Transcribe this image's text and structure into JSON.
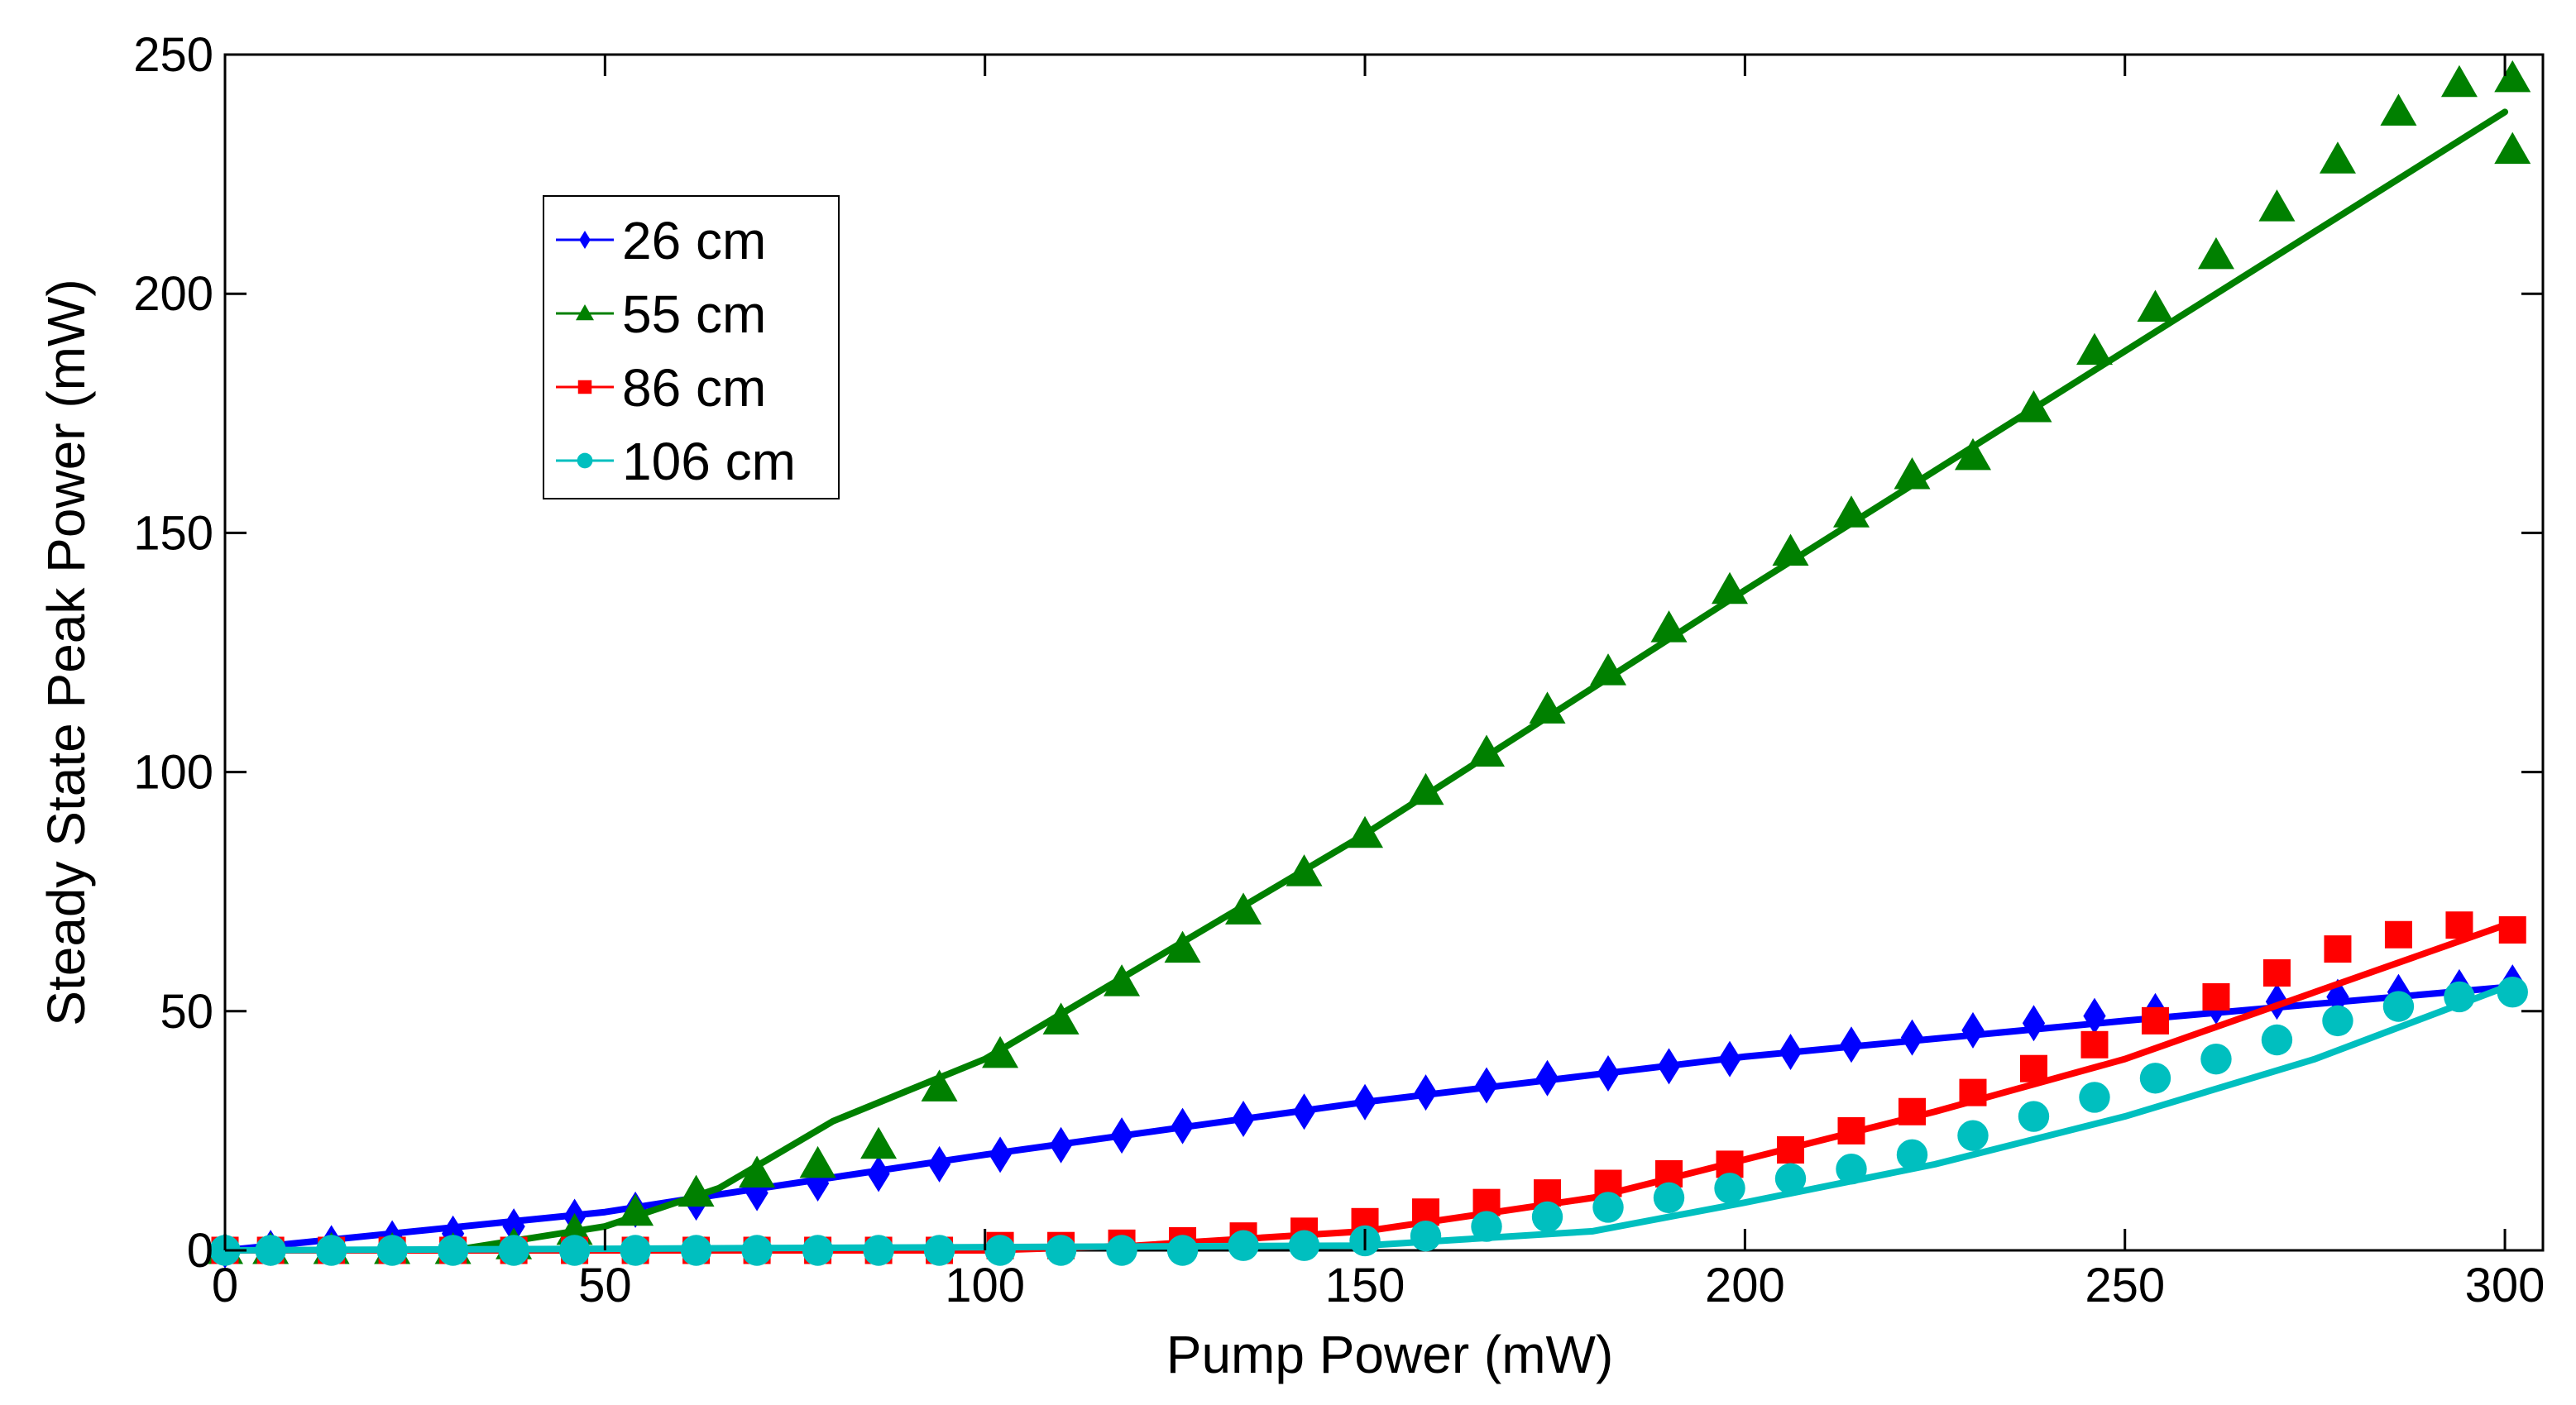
{
  "chart_data": {
    "type": "line",
    "title": "",
    "xlabel": "Pump Power (mW)",
    "ylabel": "Steady State Peak Power (mW)",
    "xlim": [
      0,
      305
    ],
    "ylim": [
      0,
      250
    ],
    "xticks": [
      0,
      50,
      100,
      150,
      200,
      250,
      300
    ],
    "yticks": [
      0,
      50,
      100,
      150,
      200,
      250
    ],
    "legend_position": "upper-left",
    "grid": false,
    "series": [
      {
        "name": "26 cm",
        "color": "#0000ff",
        "marker": "diamond",
        "line_x": [
          0,
          50,
          60,
          100,
          150,
          200,
          250,
          300
        ],
        "line_y": [
          0,
          8,
          10.5,
          20,
          31,
          40.5,
          48,
          55
        ],
        "points_x": [
          0,
          6,
          14,
          22,
          30,
          38,
          46,
          54,
          62,
          70,
          78,
          86,
          94,
          102,
          110,
          118,
          126,
          134,
          142,
          150,
          158,
          166,
          174,
          182,
          190,
          198,
          206,
          214,
          222,
          230,
          238,
          246,
          254,
          262,
          270,
          278,
          286,
          294,
          301
        ],
        "points_y": [
          0,
          0.5,
          1.5,
          2.5,
          3.5,
          5,
          7,
          8.5,
          10,
          12,
          14,
          16,
          18,
          20,
          22,
          24,
          26,
          27.5,
          29,
          31,
          33,
          34.5,
          36,
          37,
          38.5,
          40,
          41.5,
          43,
          44.5,
          46,
          47.5,
          49,
          50,
          51,
          52,
          53,
          54,
          55,
          56
        ]
      },
      {
        "name": "55 cm",
        "color": "#008000",
        "marker": "triangle",
        "line_x": [
          0,
          30,
          50,
          65,
          80,
          100,
          150,
          200,
          250,
          300
        ],
        "line_y": [
          0,
          0,
          5,
          13,
          27,
          40,
          87,
          138,
          188,
          238
        ],
        "points_x": [
          0,
          6,
          14,
          22,
          30,
          38,
          46,
          54,
          62,
          70,
          78,
          86,
          94,
          102,
          110,
          118,
          126,
          134,
          142,
          150,
          158,
          166,
          174,
          182,
          190,
          198,
          206,
          214,
          222,
          230,
          238,
          246,
          254,
          262,
          270,
          278,
          286,
          294,
          301,
          301
        ],
        "points_y": [
          0,
          0,
          0,
          0,
          0,
          1,
          4,
          8,
          12,
          16,
          18,
          22,
          34,
          41,
          48,
          56,
          63,
          71,
          79,
          87,
          96,
          104,
          113,
          121,
          130,
          138,
          146,
          154,
          162,
          166,
          176,
          188,
          197,
          208,
          218,
          228,
          238,
          244,
          230,
          245
        ]
      },
      {
        "name": "86 cm",
        "color": "#ff0000",
        "marker": "square",
        "line_x": [
          0,
          100,
          120,
          150,
          180,
          200,
          225,
          250,
          275,
          300
        ],
        "line_y": [
          0,
          0,
          1,
          4,
          11,
          19,
          29,
          40,
          54,
          68
        ],
        "points_x": [
          0,
          6,
          14,
          22,
          30,
          38,
          46,
          54,
          62,
          70,
          78,
          86,
          94,
          102,
          110,
          118,
          126,
          134,
          142,
          150,
          158,
          166,
          174,
          182,
          190,
          198,
          206,
          214,
          222,
          230,
          238,
          246,
          254,
          262,
          270,
          278,
          286,
          294,
          301
        ],
        "points_y": [
          0,
          0,
          0,
          0,
          0,
          0,
          0,
          0,
          0,
          0,
          0,
          0,
          0,
          1,
          1,
          1.5,
          2,
          3,
          4,
          6,
          8,
          10,
          12,
          14,
          16,
          18,
          21,
          25,
          29,
          33,
          38,
          43,
          48,
          53,
          58,
          63,
          66,
          68,
          67
        ]
      },
      {
        "name": "106 cm",
        "color": "#00bfbf",
        "marker": "circle",
        "line_x": [
          0,
          150,
          180,
          200,
          225,
          250,
          275,
          300
        ],
        "line_y": [
          0,
          1,
          4,
          10,
          18,
          28,
          40,
          55
        ],
        "points_x": [
          0,
          6,
          14,
          22,
          30,
          38,
          46,
          54,
          62,
          70,
          78,
          86,
          94,
          102,
          110,
          118,
          126,
          134,
          142,
          150,
          158,
          166,
          174,
          182,
          190,
          198,
          206,
          214,
          222,
          230,
          238,
          246,
          254,
          262,
          270,
          278,
          286,
          294,
          301
        ],
        "points_y": [
          0,
          0,
          0,
          0,
          0,
          0,
          0,
          0,
          0,
          0,
          0,
          0,
          0,
          0,
          0,
          0,
          0,
          1,
          1,
          2,
          3,
          5,
          7,
          9,
          11,
          13,
          15,
          17,
          20,
          24,
          28,
          32,
          36,
          40,
          44,
          48,
          51,
          53,
          54
        ]
      }
    ]
  }
}
